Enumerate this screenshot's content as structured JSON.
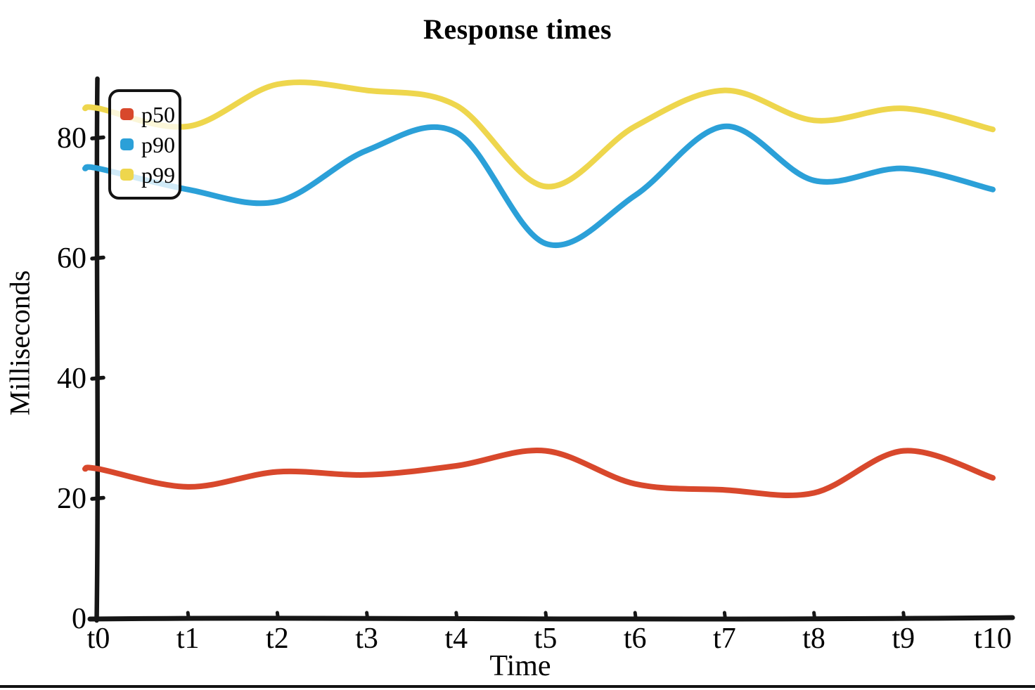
{
  "window": {
    "background": "#ffffff",
    "bottom_border_color": "#121212"
  },
  "chart_data": {
    "type": "line",
    "title": "Response times",
    "xlabel": "Time",
    "ylabel": "Milliseconds",
    "categories": [
      "t0",
      "t1",
      "t2",
      "t3",
      "t4",
      "t5",
      "t6",
      "t7",
      "t8",
      "t9",
      "t10"
    ],
    "y_ticks": [
      0,
      20,
      40,
      60,
      80
    ],
    "ylim": [
      0,
      90
    ],
    "grid": false,
    "legend_position": "top-left",
    "axis_color": "#161616",
    "series": [
      {
        "name": "p50",
        "color": "#d8482c",
        "values": [
          25,
          22,
          24.5,
          24,
          25.5,
          28,
          22.5,
          21.5,
          21,
          28,
          23.5
        ]
      },
      {
        "name": "p90",
        "color": "#2ba0d8",
        "values": [
          75,
          71.5,
          69.5,
          78,
          81,
          62.5,
          70.5,
          82,
          73,
          75,
          71.5
        ]
      },
      {
        "name": "p99",
        "color": "#eed64d",
        "values": [
          85,
          82,
          89,
          88,
          85.5,
          72,
          82,
          88,
          83,
          85,
          81.5
        ]
      }
    ]
  }
}
